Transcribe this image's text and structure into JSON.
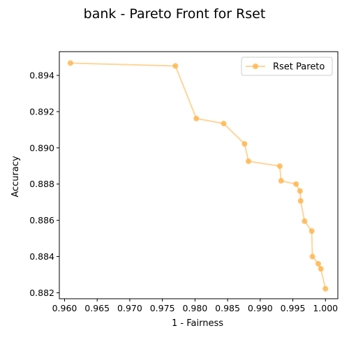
{
  "chart_data": {
    "type": "line",
    "title": "bank - Pareto Front for Rset",
    "xlabel": "1 - Fairness",
    "ylabel": "Accuracy",
    "xlim": [
      0.9592,
      1.0019
    ],
    "ylim": [
      0.88167,
      0.89531
    ],
    "xticks": [
      "0.960",
      "0.965",
      "0.970",
      "0.975",
      "0.980",
      "0.985",
      "0.990",
      "0.995",
      "1.000"
    ],
    "yticks": [
      "0.882",
      "0.884",
      "0.886",
      "0.888",
      "0.890",
      "0.892",
      "0.894"
    ],
    "grid": false,
    "legend_position": "top-right",
    "series": [
      {
        "name": "Rset Pareto",
        "color": "#ffb347",
        "marker": "circle",
        "x": [
          0.9609,
          0.977,
          0.9802,
          0.9844,
          0.9876,
          0.9882,
          0.993,
          0.9932,
          0.9955,
          0.9961,
          0.9962,
          0.9968,
          0.9979,
          0.998,
          0.9989,
          0.9993,
          1.0
        ],
        "y": [
          0.89468,
          0.89452,
          0.89162,
          0.89134,
          0.89022,
          0.88926,
          0.88899,
          0.88818,
          0.888,
          0.88762,
          0.88707,
          0.88595,
          0.88541,
          0.884,
          0.8836,
          0.88332,
          0.88222
        ]
      }
    ]
  }
}
